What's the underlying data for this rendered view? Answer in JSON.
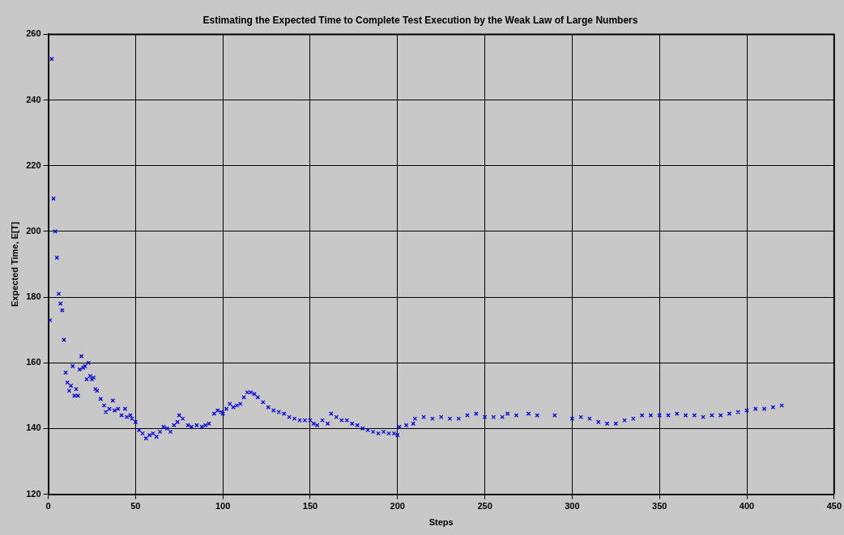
{
  "chart_data": {
    "type": "scatter",
    "title": "Estimating the Expected Time to Complete Test Execution by the Weak Law of Large Numbers",
    "xlabel": "Steps",
    "ylabel": "Expected Time, E[T]",
    "x": [
      1,
      2,
      3,
      4,
      5,
      6,
      7,
      8,
      9,
      10,
      11,
      12,
      13,
      14,
      15,
      16,
      17,
      18,
      19,
      20,
      21,
      22,
      23,
      24,
      25,
      26,
      27,
      28,
      30,
      32,
      33,
      35,
      37,
      38,
      40,
      42,
      44,
      45,
      47,
      48,
      50,
      52,
      54,
      56,
      58,
      60,
      62,
      64,
      66,
      68,
      70,
      72,
      74,
      75,
      77,
      80,
      82,
      85,
      88,
      90,
      92,
      95,
      97,
      99,
      100,
      102,
      104,
      106,
      108,
      110,
      112,
      114,
      116,
      118,
      120,
      123,
      126,
      129,
      132,
      135,
      138,
      141,
      144,
      147,
      150,
      152,
      154,
      157,
      160,
      162,
      165,
      168,
      171,
      174,
      177,
      180,
      183,
      186,
      189,
      192,
      195,
      198,
      200,
      201,
      205,
      209,
      210,
      215,
      220,
      225,
      230,
      235,
      240,
      245,
      250,
      255,
      260,
      263,
      268,
      275,
      280,
      290,
      300,
      305,
      310,
      315,
      320,
      325,
      330,
      335,
      340,
      345,
      350,
      355,
      360,
      365,
      370,
      375,
      380,
      385,
      390,
      395,
      400,
      405,
      410,
      415,
      420
    ],
    "series": [
      {
        "color": "#0000e6",
        "values": [
          173,
          252.5,
          210,
          200,
          192,
          181,
          178,
          176,
          167,
          157,
          154,
          151.5,
          153,
          159,
          150,
          152,
          150,
          158,
          162,
          158.5,
          159,
          155,
          160,
          156,
          155,
          155.5,
          152,
          151.5,
          149,
          147,
          145,
          146,
          148.5,
          145.5,
          146,
          144,
          146,
          143.5,
          144,
          143,
          142,
          139.5,
          138.5,
          137,
          138,
          138.5,
          137.5,
          139,
          140.5,
          140,
          139,
          141,
          142,
          144,
          143,
          141,
          140.5,
          141,
          140.5,
          141,
          141.5,
          144.5,
          145.5,
          145,
          144.5,
          146,
          147.5,
          146.5,
          147,
          147.5,
          149.5,
          151,
          151,
          150.5,
          149.5,
          148,
          146.5,
          145.5,
          145,
          144.5,
          143.5,
          143,
          142.5,
          142.5,
          142.5,
          141.5,
          141,
          142.5,
          141.5,
          144.5,
          143.5,
          142.5,
          142.5,
          141.5,
          141,
          140,
          139.5,
          139,
          138.5,
          139,
          138.5,
          138.5,
          138,
          140.5,
          141,
          141.5,
          143,
          143.5,
          143,
          143.5,
          143,
          143,
          144,
          144.5,
          143.5,
          143.5,
          143.5,
          144.5,
          144,
          144.5,
          144,
          144,
          143,
          143.5,
          143,
          142,
          141.5,
          141.5,
          142.5,
          143,
          144,
          144,
          144,
          144,
          144.5,
          144,
          144,
          143.5,
          144,
          144,
          144.5,
          145,
          145.5,
          146,
          146,
          146.5,
          147
        ]
      }
    ],
    "xlim": [
      0,
      450
    ],
    "xticks": [
      0,
      50,
      100,
      150,
      200,
      250,
      300,
      350,
      400,
      450
    ],
    "ylim": [
      120,
      260
    ],
    "yticks": [
      120,
      140,
      160,
      180,
      200,
      220,
      240,
      260
    ],
    "grid": true,
    "marker": "cross",
    "legend": false
  }
}
